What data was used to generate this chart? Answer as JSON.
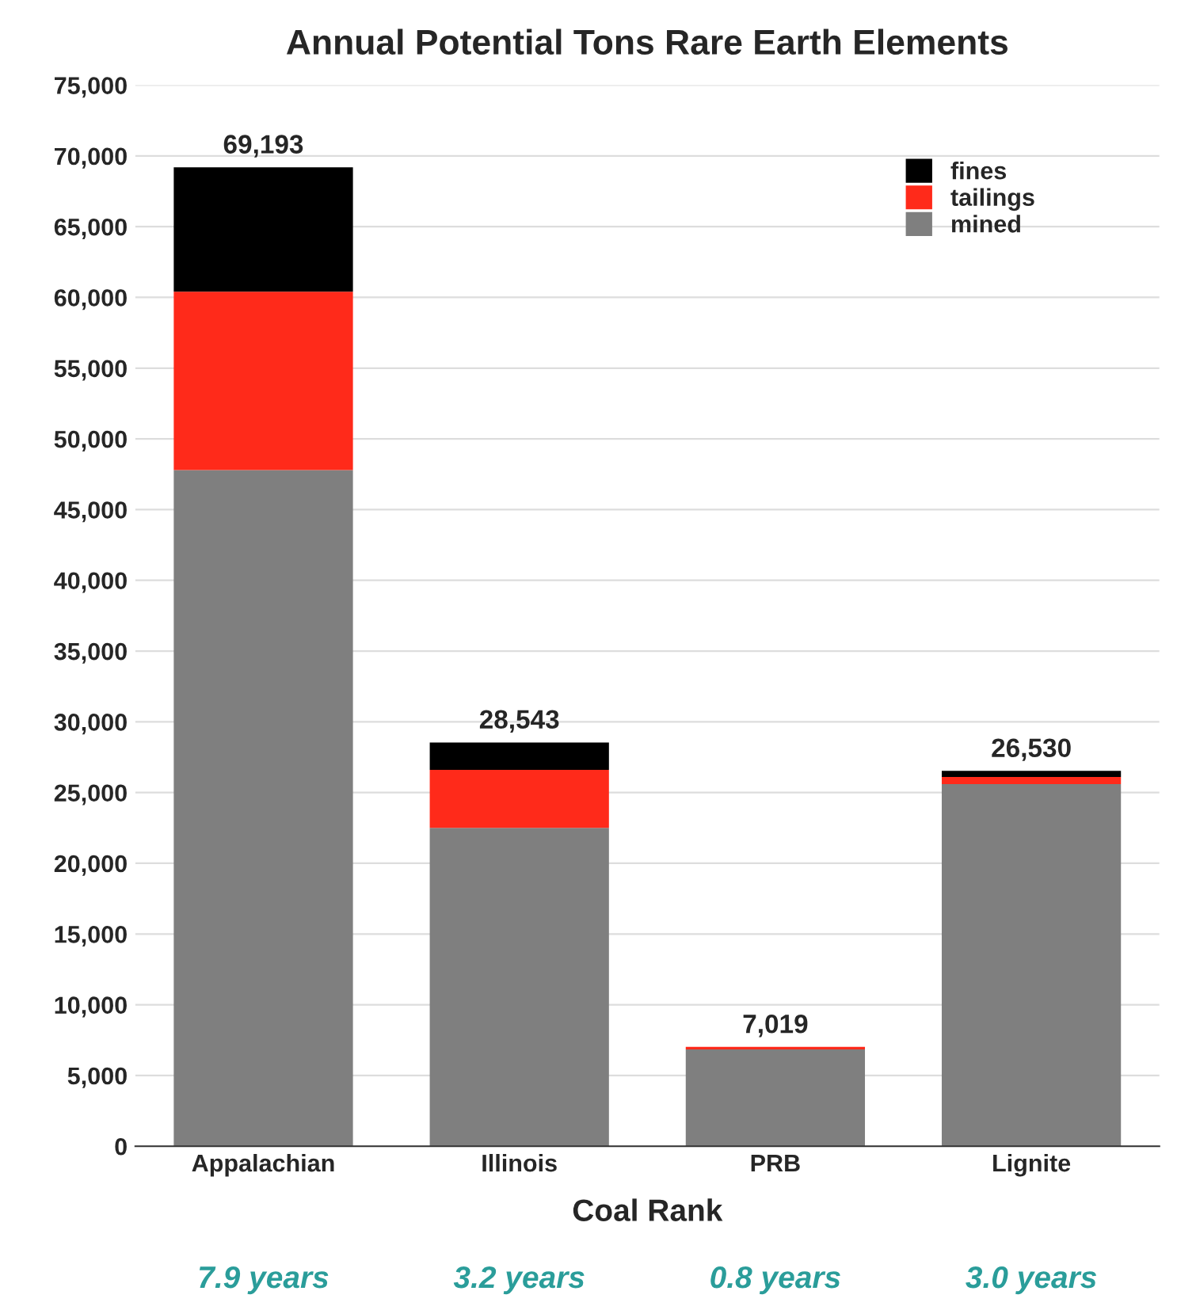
{
  "chart_data": {
    "type": "bar",
    "title": "Annual Potential Tons Rare Earth Elements",
    "xlabel": "Coal Rank",
    "categories": [
      "Appalachian",
      "Illinois",
      "PRB",
      "Lignite"
    ],
    "stacked": true,
    "series": [
      {
        "name": "mined",
        "color": "#7f7f7f",
        "values": [
          47800,
          22500,
          6850,
          25600
        ]
      },
      {
        "name": "tailings",
        "color": "#ff2a1a",
        "values": [
          12600,
          4100,
          169,
          500
        ]
      },
      {
        "name": "fines",
        "color": "#000000",
        "values": [
          8793,
          1943,
          null,
          430
        ]
      }
    ],
    "totals": [
      "69,193",
      "28,543",
      "7,019",
      "26,530"
    ],
    "ylim": [
      0,
      75000
    ],
    "yticks": [
      {
        "value": 0,
        "label": "0"
      },
      {
        "value": 5000,
        "label": "5,000"
      },
      {
        "value": 10000,
        "label": "10,000"
      },
      {
        "value": 15000,
        "label": "15,000"
      },
      {
        "value": 20000,
        "label": "20,000"
      },
      {
        "value": 25000,
        "label": "25,000"
      },
      {
        "value": 30000,
        "label": "30,000"
      },
      {
        "value": 35000,
        "label": "35,000"
      },
      {
        "value": 40000,
        "label": "40,000"
      },
      {
        "value": 45000,
        "label": "45,000"
      },
      {
        "value": 50000,
        "label": "50,000"
      },
      {
        "value": 55000,
        "label": "55,000"
      },
      {
        "value": 60000,
        "label": "60,000"
      },
      {
        "value": 65000,
        "label": "65,000"
      },
      {
        "value": 70000,
        "label": "70,000"
      },
      {
        "value": 75000,
        "label": "75,000"
      }
    ],
    "grid": "y",
    "legend": "top right",
    "annotations": [
      "7.9 years",
      "3.2 years",
      "0.8 years",
      "3.0 years"
    ]
  }
}
